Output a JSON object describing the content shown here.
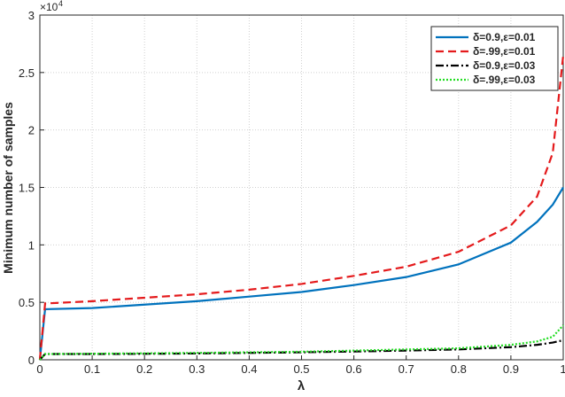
{
  "chart_data": {
    "type": "line",
    "xlabel": "λ",
    "ylabel": "Minimum number of samples",
    "y_exponent_base": "×10",
    "y_exponent": "4",
    "x": [
      0,
      0.01,
      0.1,
      0.2,
      0.3,
      0.4,
      0.5,
      0.6,
      0.7,
      0.8,
      0.9,
      0.95,
      0.98,
      1
    ],
    "series": [
      {
        "name": "δ=0.9,ε=0.01",
        "color": "#0072bd",
        "dash": "solid",
        "values": [
          0,
          0.44,
          0.45,
          0.48,
          0.51,
          0.55,
          0.59,
          0.65,
          0.72,
          0.83,
          1.02,
          1.2,
          1.35,
          1.5
        ]
      },
      {
        "name": "δ=.99,ε=0.01",
        "color": "#e41a1c",
        "dash": "dashed",
        "values": [
          0,
          0.49,
          0.51,
          0.54,
          0.57,
          0.61,
          0.66,
          0.73,
          0.81,
          0.94,
          1.17,
          1.42,
          1.8,
          2.65
        ]
      },
      {
        "name": "δ=0.9,ε=0.03",
        "color": "#000000",
        "dash": "dashdot",
        "values": [
          0,
          0.05,
          0.05,
          0.052,
          0.055,
          0.06,
          0.065,
          0.072,
          0.08,
          0.09,
          0.11,
          0.13,
          0.15,
          0.17
        ]
      },
      {
        "name": "δ=.99,ε=0.03",
        "color": "#22dd22",
        "dash": "dotted",
        "values": [
          0,
          0.05,
          0.053,
          0.056,
          0.06,
          0.065,
          0.07,
          0.08,
          0.09,
          0.1,
          0.13,
          0.16,
          0.2,
          0.3
        ]
      }
    ],
    "xlim": [
      0,
      1
    ],
    "xticks": [
      0,
      0.1,
      0.2,
      0.3,
      0.4,
      0.5,
      0.6,
      0.7,
      0.8,
      0.9,
      1
    ],
    "ylim": [
      0,
      3
    ],
    "yticks": [
      0,
      0.5,
      1,
      1.5,
      2,
      2.5,
      3
    ],
    "grid": true,
    "legend": "top-right"
  }
}
